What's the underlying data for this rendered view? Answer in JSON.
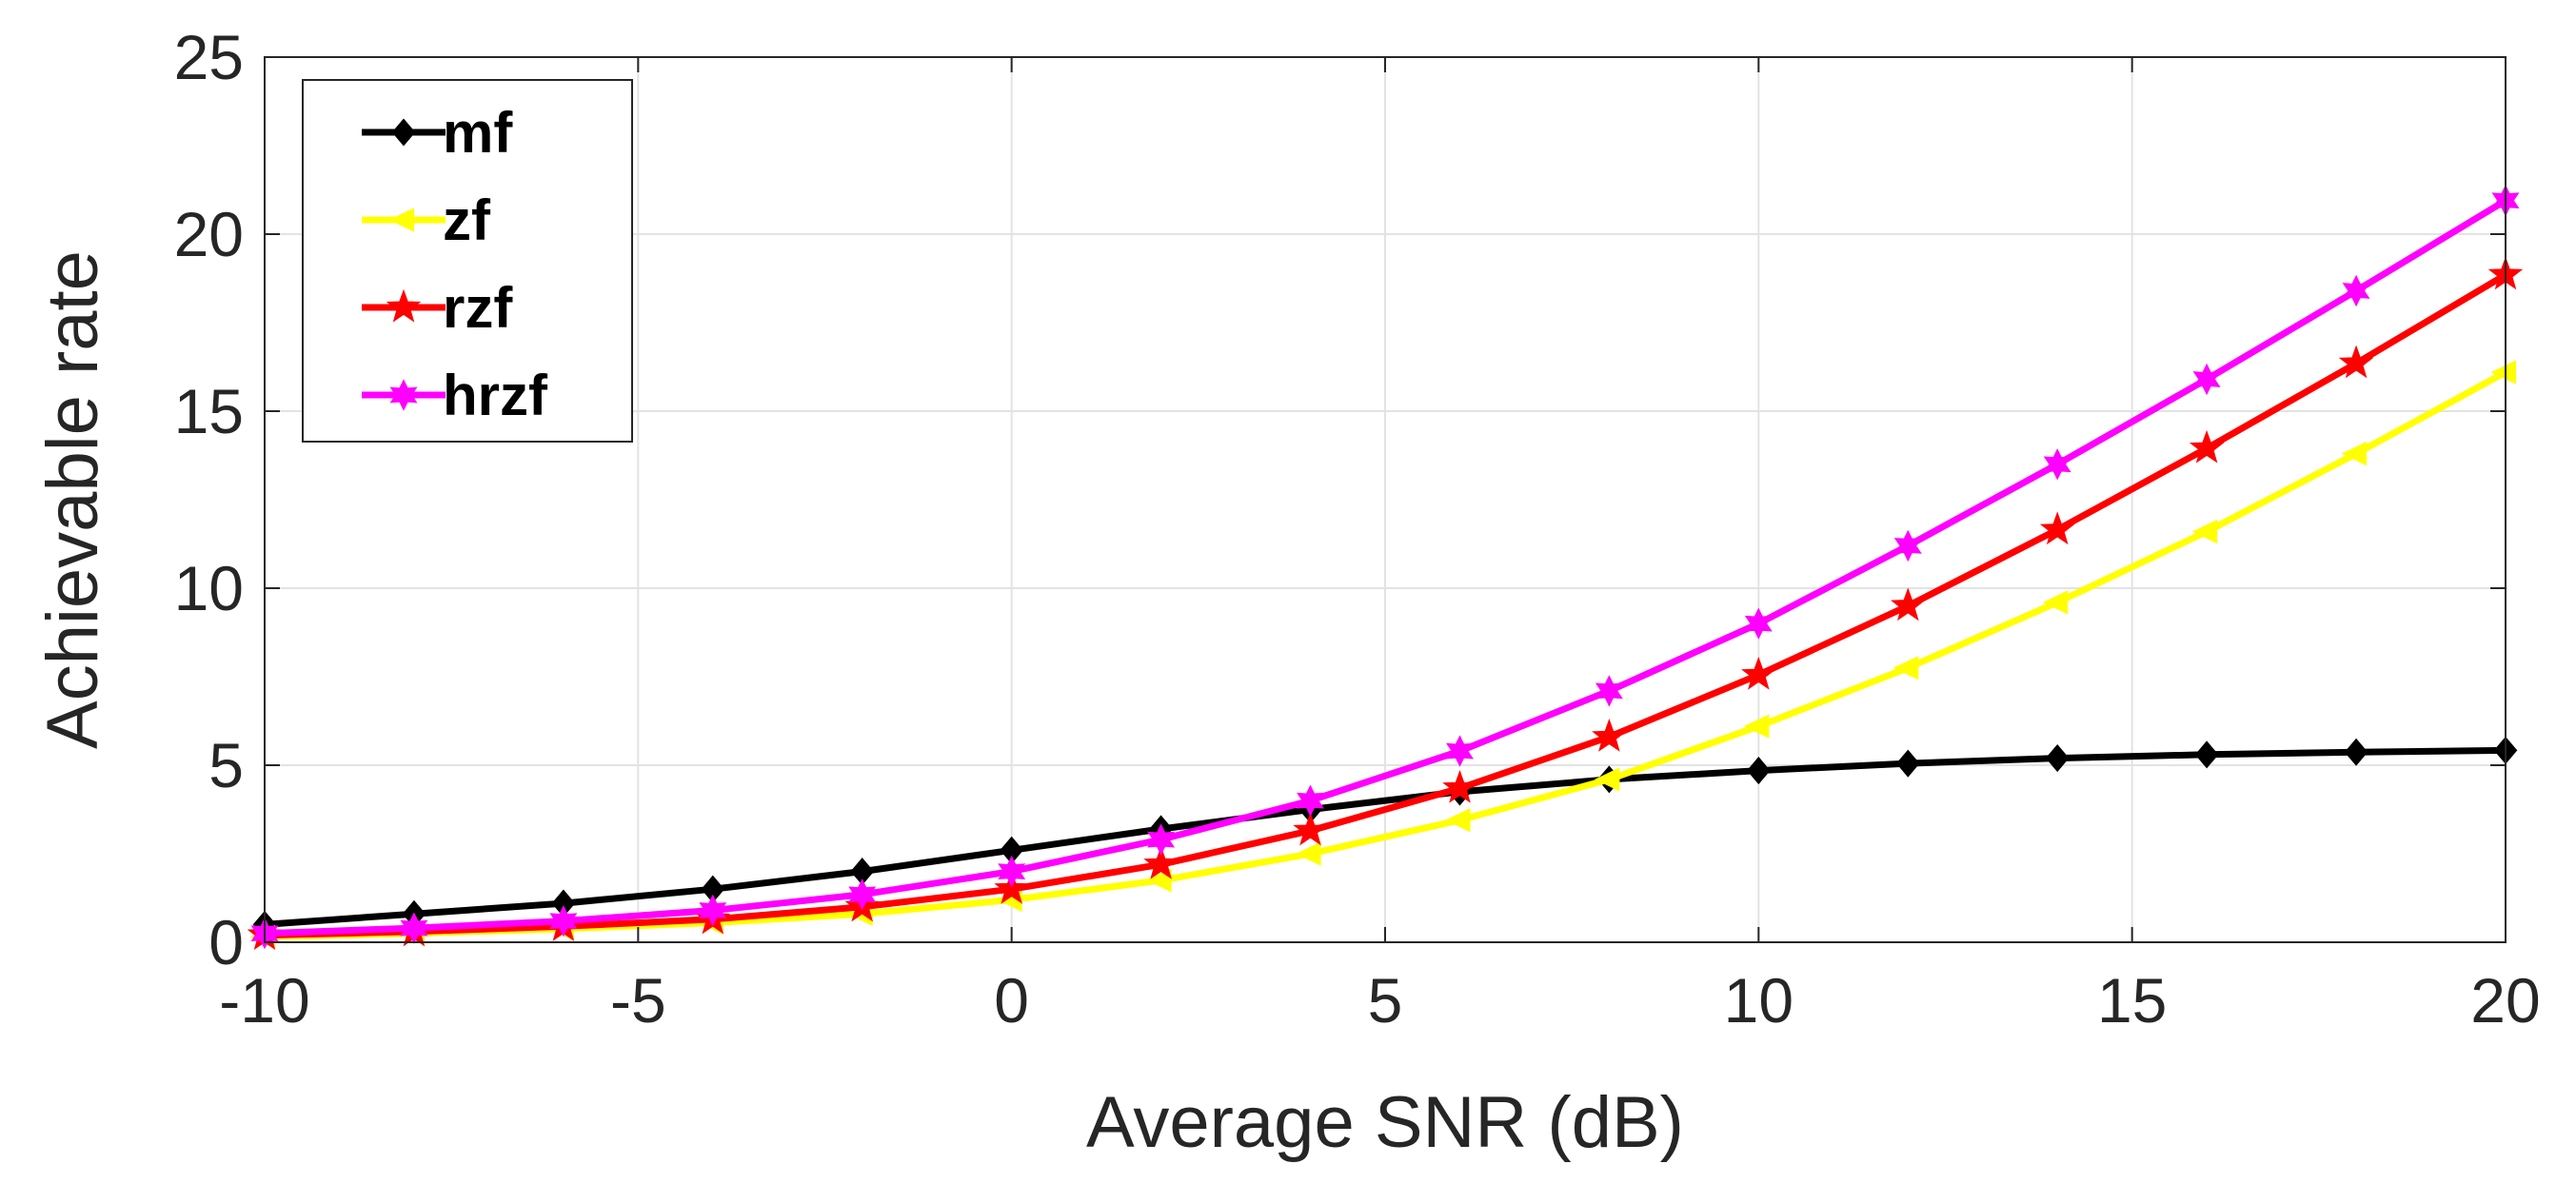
{
  "chart_data": {
    "type": "line",
    "xlabel": "Average SNR (dB)",
    "ylabel": "Achievable rate",
    "xlim": [
      -10,
      20
    ],
    "ylim": [
      0,
      25
    ],
    "xticks": [
      -10,
      -5,
      0,
      5,
      10,
      15,
      20
    ],
    "yticks": [
      0,
      5,
      10,
      15,
      20,
      25
    ],
    "grid": true,
    "legend_position": "top-left",
    "x": [
      -10,
      -8,
      -6,
      -4,
      -2,
      0,
      2,
      4,
      6,
      8,
      10,
      12,
      14,
      16,
      18,
      20
    ],
    "series": [
      {
        "name": "mf",
        "color": "#000000",
        "marker": "diamond",
        "values": [
          0.5,
          0.8,
          1.1,
          1.5,
          2.0,
          2.6,
          3.2,
          3.75,
          4.25,
          4.6,
          4.85,
          5.05,
          5.2,
          5.3,
          5.37,
          5.42
        ]
      },
      {
        "name": "zf",
        "color": "#ffff00",
        "marker": "triangle-left",
        "values": [
          0.15,
          0.25,
          0.38,
          0.55,
          0.8,
          1.2,
          1.75,
          2.5,
          3.45,
          4.6,
          6.1,
          7.75,
          9.6,
          11.6,
          13.8,
          16.1
        ]
      },
      {
        "name": "rzf",
        "color": "#ff0000",
        "marker": "pentagram",
        "values": [
          0.2,
          0.3,
          0.45,
          0.65,
          1.0,
          1.5,
          2.2,
          3.15,
          4.35,
          5.8,
          7.55,
          9.5,
          11.65,
          13.95,
          16.35,
          18.85
        ]
      },
      {
        "name": "hrzf",
        "color": "#ff00ff",
        "marker": "hexagram",
        "values": [
          0.25,
          0.4,
          0.6,
          0.9,
          1.35,
          2.0,
          2.9,
          4.0,
          5.4,
          7.1,
          9.0,
          11.2,
          13.5,
          15.9,
          18.4,
          20.95
        ]
      }
    ]
  }
}
